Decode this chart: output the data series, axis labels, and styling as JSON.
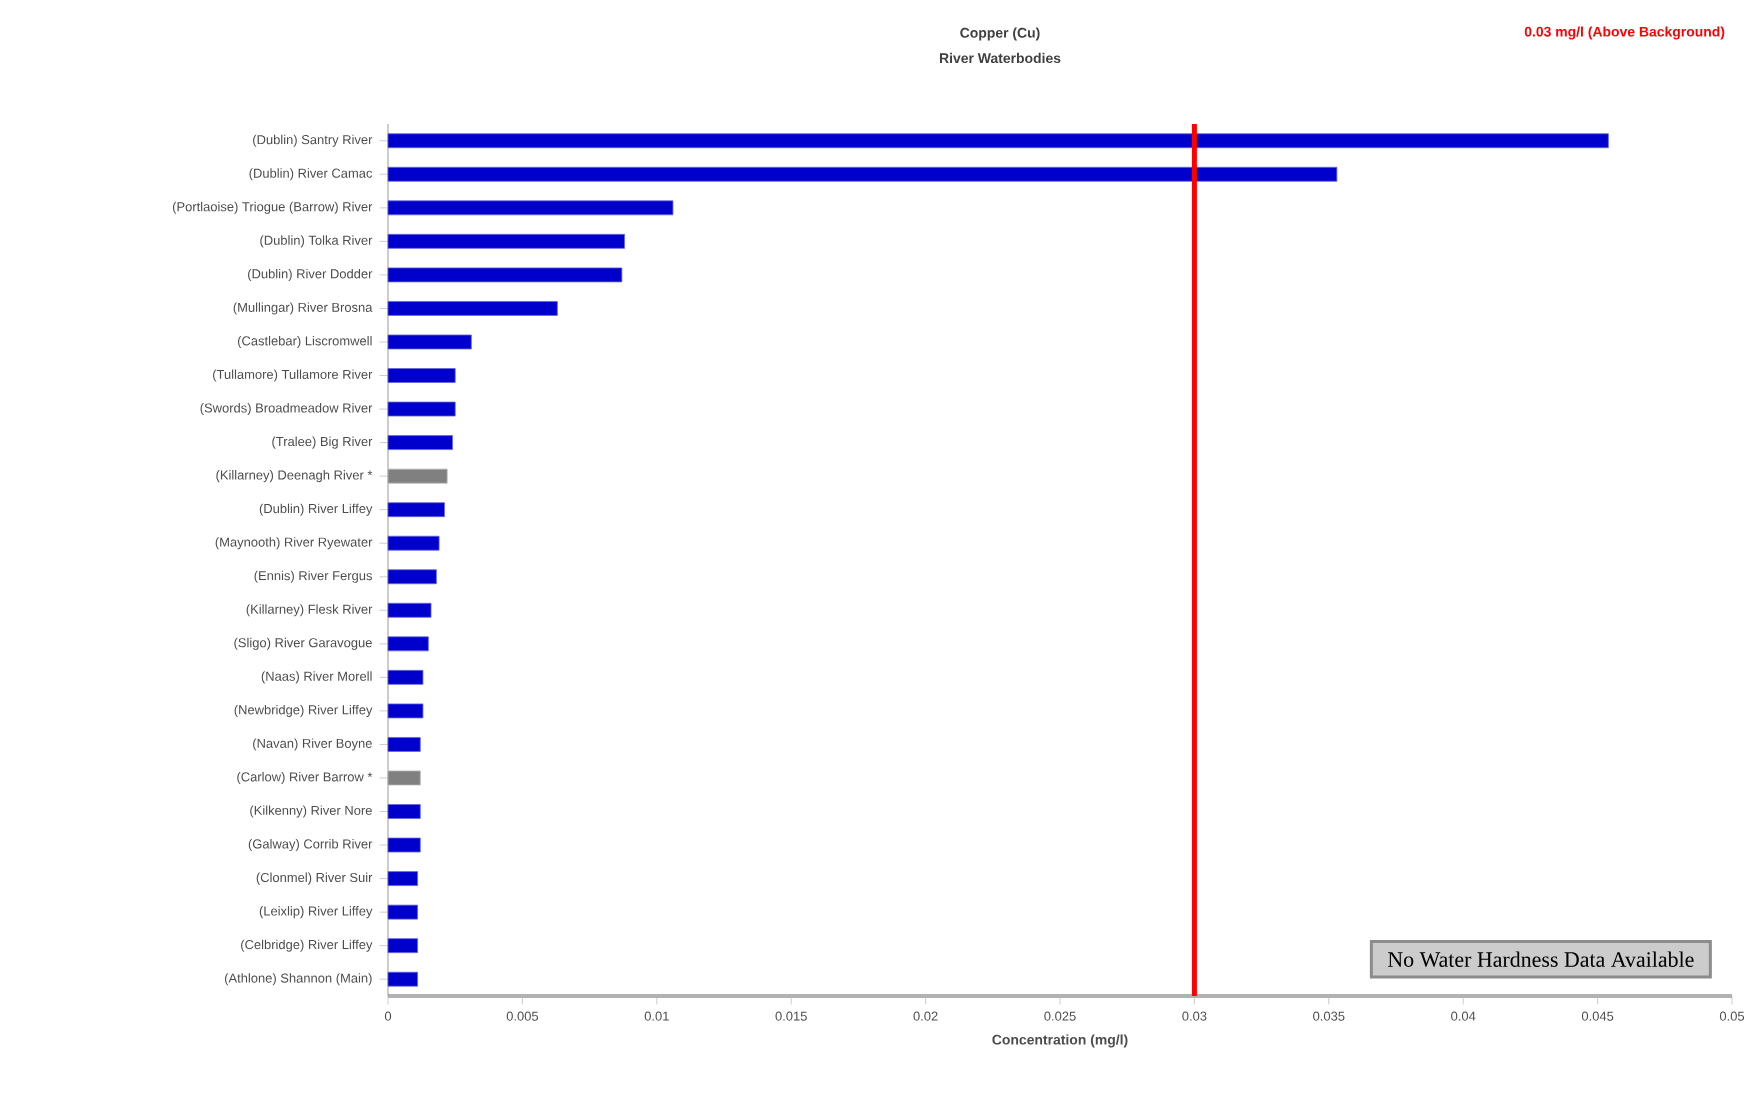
{
  "chart_data": {
    "type": "bar",
    "orientation": "horizontal",
    "title": "Copper (Cu)",
    "subtitle": "River Waterbodies",
    "xlabel": "Concentration (mg/l)",
    "categories": [
      "(Dublin) Santry River",
      "(Dublin) River Camac",
      "(Portlaoise) Triogue (Barrow) River",
      "(Dublin) Tolka River",
      "(Dublin) River Dodder",
      "(Mullingar) River Brosna",
      "(Castlebar) Liscromwell",
      "(Tullamore) Tullamore River",
      "(Swords) Broadmeadow River",
      "(Tralee) Big River",
      "(Killarney) Deenagh River *",
      "(Dublin) River Liffey",
      "(Maynooth) River Ryewater",
      "(Ennis) River Fergus",
      "(Killarney) Flesk River",
      "(Sligo) River Garavogue",
      "(Naas) River Morell",
      "(Newbridge) River Liffey",
      "(Navan) River Boyne",
      "(Carlow) River Barrow *",
      "(Kilkenny) River Nore",
      "(Galway) Corrib River",
      "(Clonmel) River Suir",
      "(Leixlip) River Liffey",
      "(Celbridge) River Liffey",
      "(Athlone) Shannon (Main)"
    ],
    "values": [
      0.0454,
      0.0353,
      0.0106,
      0.0088,
      0.0087,
      0.0063,
      0.0031,
      0.0025,
      0.0025,
      0.0024,
      0.0022,
      0.0021,
      0.0019,
      0.0018,
      0.0016,
      0.0015,
      0.0013,
      0.0013,
      0.0012,
      0.0012,
      0.0012,
      0.0012,
      0.0011,
      0.0011,
      0.0011,
      0.0011
    ],
    "colors": [
      "#0000cc",
      "#0000cc",
      "#0000cc",
      "#0000cc",
      "#0000cc",
      "#0000cc",
      "#0000cc",
      "#0000cc",
      "#0000cc",
      "#0000cc",
      "#808080",
      "#0000cc",
      "#0000cc",
      "#0000cc",
      "#0000cc",
      "#0000cc",
      "#0000cc",
      "#0000cc",
      "#0000cc",
      "#808080",
      "#0000cc",
      "#0000cc",
      "#0000cc",
      "#0000cc",
      "#0000cc",
      "#0000cc"
    ],
    "xlim": [
      0,
      0.05
    ],
    "xticks": [
      0,
      0.005,
      0.01,
      0.015,
      0.02,
      0.025,
      0.03,
      0.035,
      0.04,
      0.045,
      0.05
    ],
    "ref_lines": [
      {
        "axis": "x",
        "value": 0.03,
        "label": "0.03 mg/l (Above Background)",
        "color": "#ff0000"
      }
    ],
    "annotations": [
      "No Water Hardness Data Available"
    ],
    "grid": false
  }
}
